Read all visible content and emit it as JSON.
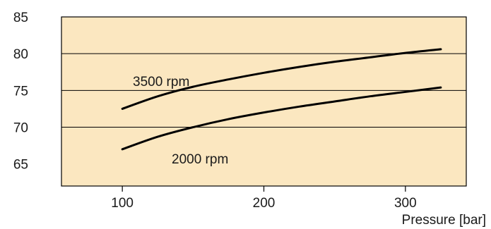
{
  "chart_data": {
    "type": "line",
    "title": "",
    "xlabel": "Pressure [bar]",
    "ylabel": "",
    "xlim": [
      57,
      343
    ],
    "ylim": [
      62,
      85
    ],
    "x_ticks": [
      100,
      200,
      300
    ],
    "x_tick_labels": [
      "100",
      "200",
      "300"
    ],
    "y_ticks": [
      65,
      70,
      75,
      80,
      85
    ],
    "y_tick_labels": [
      "65",
      "70",
      "75",
      "80",
      "85"
    ],
    "y_gridlines": [
      70,
      75,
      80
    ],
    "grid": "horizontal",
    "legend": "none",
    "series": [
      {
        "name": "3500 rpm",
        "x": [
          100,
          125,
          150,
          175,
          200,
          225,
          250,
          275,
          300,
          325
        ],
        "y": [
          72.5,
          74.2,
          75.5,
          76.5,
          77.4,
          78.2,
          78.9,
          79.5,
          80.1,
          80.6
        ]
      },
      {
        "name": "2000 rpm",
        "x": [
          100,
          125,
          150,
          175,
          200,
          225,
          250,
          275,
          300,
          325
        ],
        "y": [
          67.0,
          68.7,
          70.0,
          71.1,
          72.0,
          72.8,
          73.5,
          74.2,
          74.8,
          75.4
        ]
      }
    ],
    "colors": {
      "plot_background": "#fbe7c0",
      "line": "#000000",
      "frame": "#000000"
    }
  }
}
